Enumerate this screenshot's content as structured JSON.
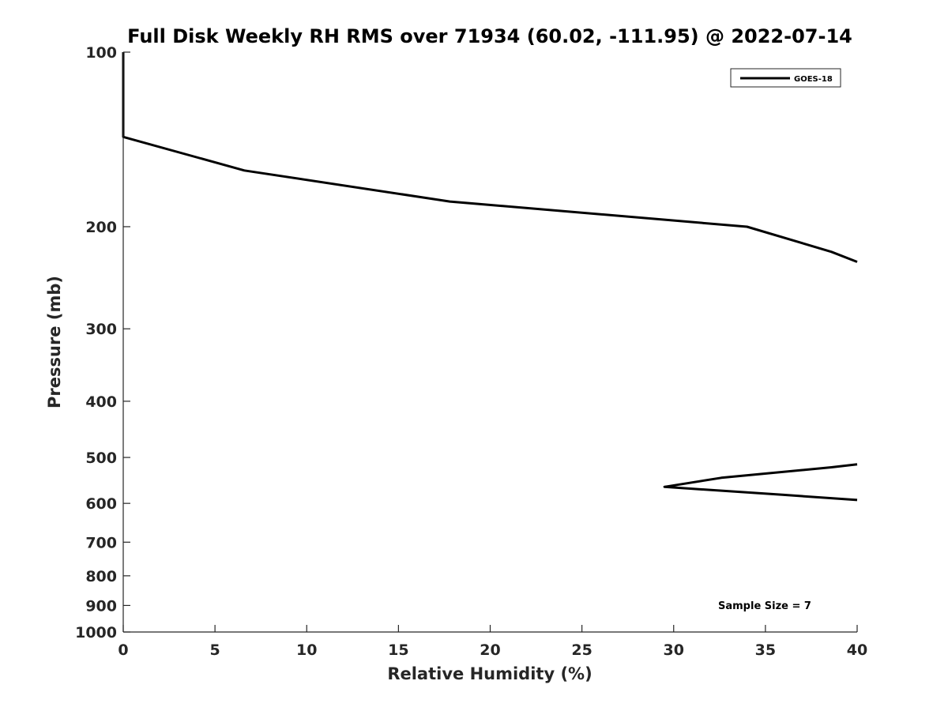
{
  "chart_data": {
    "type": "line",
    "title": "Full Disk Weekly RH RMS over 71934 (60.02, -111.95) @ 2022-07-14",
    "xlabel": "Relative Humidity (%)",
    "ylabel": "Pressure (mb)",
    "xlim": [
      0,
      40
    ],
    "ylim": [
      100,
      1000
    ],
    "y_scale": "log",
    "y_reversed": true,
    "grid": false,
    "x_ticks": [
      0,
      5,
      10,
      15,
      20,
      25,
      30,
      35,
      40
    ],
    "x_tick_labels": [
      "0",
      "5",
      "10",
      "15",
      "20",
      "25",
      "30",
      "35",
      "40"
    ],
    "y_ticks": [
      100,
      200,
      300,
      400,
      500,
      600,
      700,
      800,
      900,
      1000
    ],
    "y_tick_labels": [
      "100",
      "200",
      "300",
      "400",
      "500",
      "600",
      "700",
      "800",
      "900",
      "1000"
    ],
    "legend": {
      "position": "top-right",
      "entries": [
        "GOES-18"
      ]
    },
    "series": [
      {
        "name": "GOES-18",
        "color": "#000000",
        "segments": [
          {
            "x": [
              0,
              0,
              6.6,
              17.8,
              34.0,
              38.6,
              40
            ],
            "y": [
              100,
              140,
              160,
              181,
              200,
              221,
              230
            ]
          },
          {
            "x": [
              40,
              38.6,
              32.6,
              29.5,
              36.0,
              40
            ],
            "y": [
              514,
              520,
              542,
              562,
              580,
              592
            ]
          }
        ]
      }
    ],
    "annotations": [
      {
        "text": "Sample Size = 7",
        "position": "bottom-right"
      }
    ]
  }
}
